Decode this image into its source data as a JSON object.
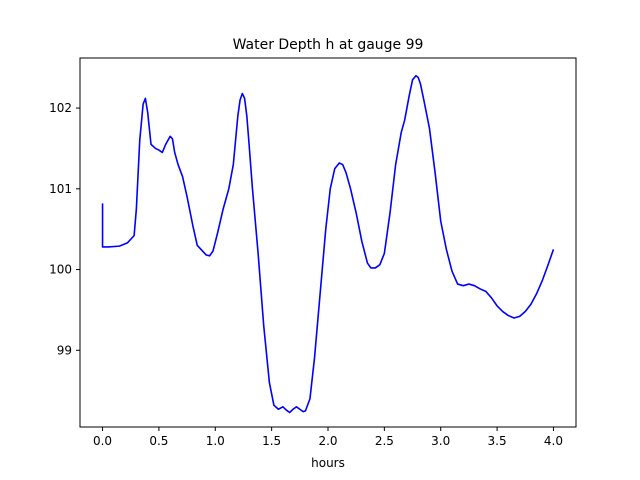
{
  "chart_data": {
    "type": "line",
    "title": "Water Depth h at gauge 99",
    "xlabel": "hours",
    "ylabel": "",
    "xlim": [
      -0.2,
      4.2
    ],
    "ylim": [
      98.05,
      102.62
    ],
    "xticks": [
      0.0,
      0.5,
      1.0,
      1.5,
      2.0,
      2.5,
      3.0,
      3.5,
      4.0
    ],
    "xtick_labels": [
      "0.0",
      "0.5",
      "1.0",
      "1.5",
      "2.0",
      "2.5",
      "3.0",
      "3.5",
      "4.0"
    ],
    "yticks": [
      99,
      100,
      101,
      102
    ],
    "ytick_labels": [
      "99",
      "100",
      "101",
      "102"
    ],
    "grid": false,
    "series": [
      {
        "color": "#0000ff",
        "x": [
          0.0,
          0.0,
          0.05,
          0.15,
          0.22,
          0.28,
          0.3,
          0.33,
          0.36,
          0.38,
          0.4,
          0.43,
          0.47,
          0.5,
          0.53,
          0.56,
          0.6,
          0.62,
          0.64,
          0.67,
          0.71,
          0.75,
          0.8,
          0.84,
          0.88,
          0.92,
          0.95,
          0.98,
          1.02,
          1.07,
          1.12,
          1.16,
          1.2,
          1.22,
          1.24,
          1.26,
          1.28,
          1.3,
          1.33,
          1.38,
          1.43,
          1.48,
          1.52,
          1.56,
          1.6,
          1.63,
          1.66,
          1.69,
          1.72,
          1.75,
          1.78,
          1.8,
          1.84,
          1.88,
          1.93,
          1.98,
          2.02,
          2.06,
          2.1,
          2.13,
          2.16,
          2.2,
          2.25,
          2.3,
          2.35,
          2.38,
          2.42,
          2.46,
          2.5,
          2.55,
          2.6,
          2.65,
          2.68,
          2.72,
          2.75,
          2.78,
          2.8,
          2.82,
          2.85,
          2.9,
          2.95,
          3.0,
          3.05,
          3.1,
          3.15,
          3.2,
          3.25,
          3.3,
          3.35,
          3.4,
          3.45,
          3.5,
          3.55,
          3.6,
          3.65,
          3.7,
          3.75,
          3.8,
          3.85,
          3.9,
          3.95,
          4.0
        ],
        "y": [
          100.82,
          100.28,
          100.28,
          100.29,
          100.33,
          100.42,
          100.75,
          101.6,
          102.05,
          102.12,
          101.95,
          101.55,
          101.5,
          101.48,
          101.45,
          101.55,
          101.65,
          101.62,
          101.45,
          101.3,
          101.15,
          100.9,
          100.55,
          100.3,
          100.24,
          100.18,
          100.17,
          100.23,
          100.45,
          100.75,
          101.0,
          101.3,
          101.9,
          102.1,
          102.18,
          102.12,
          101.9,
          101.55,
          101.0,
          100.2,
          99.3,
          98.6,
          98.32,
          98.27,
          98.3,
          98.26,
          98.23,
          98.27,
          98.3,
          98.27,
          98.24,
          98.25,
          98.4,
          98.9,
          99.7,
          100.5,
          101.0,
          101.25,
          101.32,
          101.3,
          101.2,
          101.0,
          100.7,
          100.35,
          100.08,
          100.02,
          100.02,
          100.06,
          100.2,
          100.7,
          101.3,
          101.7,
          101.85,
          102.15,
          102.35,
          102.4,
          102.38,
          102.3,
          102.1,
          101.75,
          101.2,
          100.6,
          100.25,
          99.98,
          99.82,
          99.8,
          99.82,
          99.8,
          99.76,
          99.73,
          99.65,
          99.55,
          99.48,
          99.43,
          99.4,
          99.42,
          99.48,
          99.57,
          99.7,
          99.86,
          100.05,
          100.25
        ]
      }
    ]
  }
}
